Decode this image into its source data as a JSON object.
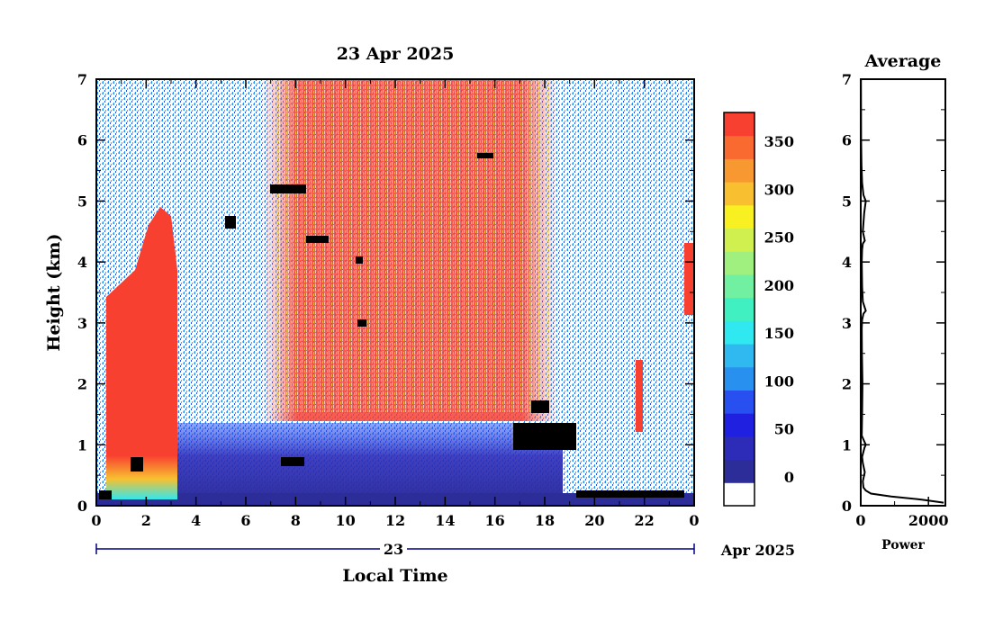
{
  "chart_data": [
    {
      "type": "heatmap",
      "title": "23 Apr 2025",
      "xlabel": "Local Time",
      "ylabel": "Height (km)",
      "x_ticks": [
        "0",
        "2",
        "4",
        "6",
        "8",
        "10",
        "12",
        "14",
        "16",
        "18",
        "20",
        "22",
        "0"
      ],
      "y_ticks": [
        "0",
        "1",
        "2",
        "3",
        "4",
        "5",
        "6",
        "7"
      ],
      "xlim": [
        0,
        24
      ],
      "ylim": [
        0,
        7
      ],
      "date_bar": {
        "day": "23",
        "month_year": "Apr 2025"
      },
      "colorbar": {
        "ticks": [
          "0",
          "50",
          "100",
          "150",
          "200",
          "250",
          "300",
          "350"
        ],
        "range": [
          -30,
          380
        ],
        "colors": [
          "#ffffff",
          "#2d2d9a",
          "#2c2cb8",
          "#2020e0",
          "#2850f0",
          "#2890ee",
          "#30b8f0",
          "#30e8f0",
          "#40f0c0",
          "#70f0a0",
          "#a0f080",
          "#d0f050",
          "#f8f020",
          "#f8c030",
          "#f89830",
          "#f86a30",
          "#f84030"
        ]
      },
      "regions": [
        {
          "name": "surface layer",
          "x": [
            0,
            24
          ],
          "y": [
            0,
            0.2
          ],
          "value": 20
        },
        {
          "name": "boundary layer",
          "x": [
            3,
            19
          ],
          "y": [
            0.2,
            1.3
          ],
          "value": 40
        },
        {
          "name": "daytime high signal",
          "x": [
            7,
            18.5
          ],
          "y": [
            1.3,
            7
          ],
          "value": 350
        },
        {
          "name": "early dense cloud",
          "x": [
            0.3,
            3.2
          ],
          "y": [
            0.1,
            5
          ],
          "value": 370
        }
      ]
    },
    {
      "type": "line",
      "title": "Average",
      "xlabel": "Power",
      "ylabel": "",
      "x_ticks": [
        "0",
        "2000"
      ],
      "y_ticks": [
        "0",
        "1",
        "2",
        "3",
        "4",
        "5",
        "6",
        "7"
      ],
      "xlim": [
        0,
        2500
      ],
      "ylim": [
        0,
        7
      ],
      "series": [
        {
          "x": [
            2450,
            1800,
            900,
            300,
            150,
            80,
            60,
            120,
            60,
            40,
            110,
            150,
            30,
            40,
            50,
            35,
            30,
            40,
            80,
            150,
            60,
            40,
            30,
            40,
            60,
            120,
            60,
            100,
            150,
            80,
            40,
            20,
            10,
            5
          ],
          "y": [
            0.05,
            0.1,
            0.15,
            0.2,
            0.25,
            0.3,
            0.4,
            0.55,
            0.7,
            0.8,
            0.95,
            1.0,
            1.15,
            1.5,
            2.0,
            2.5,
            2.9,
            3.05,
            3.15,
            3.2,
            3.35,
            3.6,
            4.0,
            4.2,
            4.3,
            4.35,
            4.5,
            4.8,
            5.0,
            5.1,
            5.3,
            5.6,
            6.0,
            7.0
          ]
        }
      ]
    }
  ]
}
